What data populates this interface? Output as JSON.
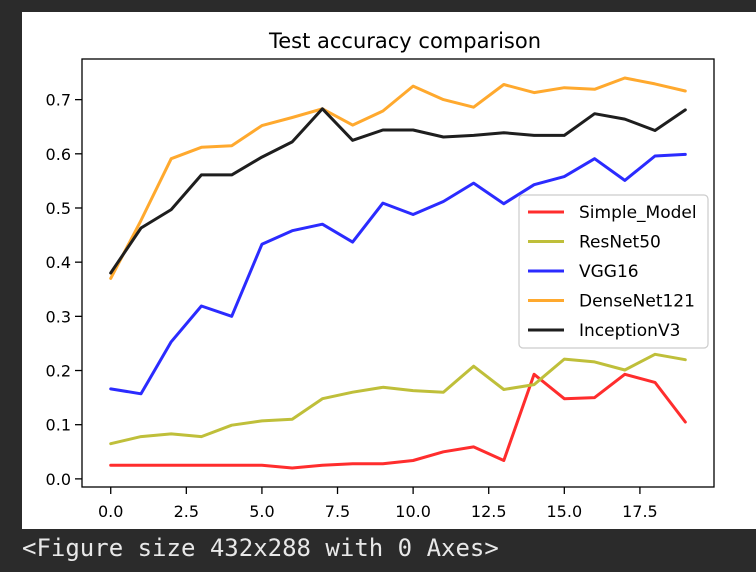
{
  "chart_data": {
    "type": "line",
    "title": "Test accuracy comparison",
    "xlabel": "",
    "ylabel": "",
    "xlim": [
      -0.95,
      19.95
    ],
    "ylim": [
      -0.015,
      0.775
    ],
    "xticks": [
      0.0,
      2.5,
      5.0,
      7.5,
      10.0,
      12.5,
      15.0,
      17.5
    ],
    "xtick_labels": [
      "0.0",
      "2.5",
      "5.0",
      "7.5",
      "10.0",
      "12.5",
      "15.0",
      "17.5"
    ],
    "yticks": [
      0.0,
      0.1,
      0.2,
      0.3,
      0.4,
      0.5,
      0.6,
      0.7
    ],
    "ytick_labels": [
      "0.0",
      "0.1",
      "0.2",
      "0.3",
      "0.4",
      "0.5",
      "0.6",
      "0.7"
    ],
    "grid": false,
    "legend_position": "center-right",
    "x": [
      0,
      1,
      2,
      3,
      4,
      5,
      6,
      7,
      8,
      9,
      10,
      11,
      12,
      13,
      14,
      15,
      16,
      17,
      18,
      19
    ],
    "series": [
      {
        "name": "Simple_Model",
        "color": "#ff2d2d",
        "values": [
          0.025,
          0.025,
          0.025,
          0.025,
          0.025,
          0.025,
          0.02,
          0.025,
          0.028,
          0.028,
          0.034,
          0.05,
          0.059,
          0.034,
          0.193,
          0.148,
          0.15,
          0.193,
          0.178,
          0.105
        ]
      },
      {
        "name": "ResNet50",
        "color": "#bfbf3a",
        "values": [
          0.065,
          0.078,
          0.083,
          0.078,
          0.099,
          0.107,
          0.11,
          0.148,
          0.16,
          0.169,
          0.163,
          0.16,
          0.208,
          0.165,
          0.174,
          0.221,
          0.216,
          0.201,
          0.23,
          0.22
        ]
      },
      {
        "name": "VGG16",
        "color": "#2b2bff",
        "values": [
          0.166,
          0.157,
          0.253,
          0.319,
          0.3,
          0.433,
          0.458,
          0.47,
          0.437,
          0.509,
          0.488,
          0.512,
          0.546,
          0.508,
          0.543,
          0.558,
          0.591,
          0.551,
          0.596,
          0.599
        ]
      },
      {
        "name": "DenseNet121",
        "color": "#ffa92e",
        "values": [
          0.37,
          0.477,
          0.591,
          0.612,
          0.615,
          0.652,
          0.667,
          0.683,
          0.653,
          0.679,
          0.725,
          0.7,
          0.686,
          0.728,
          0.713,
          0.722,
          0.719,
          0.74,
          0.729,
          0.716
        ]
      },
      {
        "name": "InceptionV3",
        "color": "#1e1e1e",
        "values": [
          0.38,
          0.463,
          0.497,
          0.561,
          0.561,
          0.594,
          0.622,
          0.683,
          0.625,
          0.644,
          0.644,
          0.631,
          0.634,
          0.639,
          0.634,
          0.634,
          0.674,
          0.664,
          0.643,
          0.681
        ]
      }
    ]
  },
  "footer": {
    "caption": "<Figure size 432x288 with 0 Axes>"
  }
}
